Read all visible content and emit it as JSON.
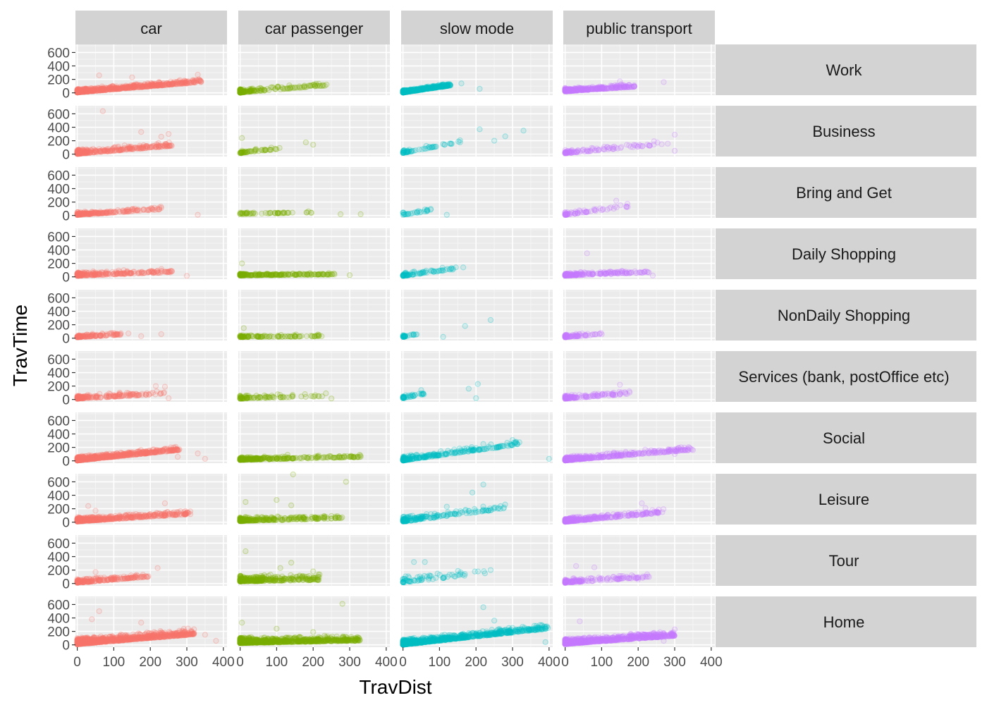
{
  "chart_data": {
    "type": "scatter",
    "facet": "grid",
    "xlabel": "TravDist",
    "ylabel": "TravTime",
    "xlim": [
      -5,
      410
    ],
    "ylim": [
      -35,
      720
    ],
    "xticks": [
      0,
      100,
      200,
      300,
      400
    ],
    "yticks": [
      0,
      200,
      400,
      600
    ],
    "grid": true,
    "panel_background": "#ebebeb",
    "strip_background": "#d3d3d3",
    "columns": [
      {
        "label": "car",
        "color": "#f8766d"
      },
      {
        "label": "car passenger",
        "color": "#7cae00"
      },
      {
        "label": "slow mode",
        "color": "#00bfc4"
      },
      {
        "label": "public transport",
        "color": "#c77cff"
      }
    ],
    "rows": [
      "Work",
      "Business",
      "Bring and Get",
      "Daily Shopping",
      "NonDaily Shopping",
      "Services (bank, postOffice etc)",
      "Social",
      "Leisure",
      "Tour",
      "Home"
    ],
    "panels": [
      [
        {
          "n": 700,
          "maxX": 340,
          "slope": 0.45,
          "base": 15,
          "noise": 28,
          "outliers": [
            [
              60,
              260
            ],
            [
              330,
              270
            ],
            [
              150,
              230
            ]
          ]
        },
        {
          "n": 180,
          "maxX": 240,
          "slope": 0.45,
          "base": 10,
          "noise": 28,
          "outliers": [],
          "compact": true
        },
        {
          "n": 520,
          "maxX": 130,
          "slope": 0.8,
          "base": 10,
          "noise": 18,
          "outliers": [
            [
              160,
              140
            ],
            [
              210,
              60
            ]
          ]
        },
        {
          "n": 360,
          "maxX": 190,
          "slope": 0.35,
          "base": 30,
          "noise": 25,
          "outliers": [
            [
              150,
              170
            ],
            [
              270,
              160
            ]
          ]
        }
      ],
      [
        {
          "n": 330,
          "maxX": 260,
          "slope": 0.45,
          "base": 15,
          "noise": 35,
          "outliers": [
            [
              70,
              640
            ],
            [
              250,
              300
            ],
            [
              175,
              330
            ],
            [
              230,
              260
            ]
          ]
        },
        {
          "n": 55,
          "maxX": 110,
          "slope": 0.6,
          "base": 20,
          "noise": 20,
          "outliers": [
            [
              5,
              240
            ],
            [
              180,
              175
            ],
            [
              200,
              140
            ]
          ]
        },
        {
          "n": 60,
          "maxX": 160,
          "slope": 1.0,
          "base": 25,
          "noise": 25,
          "outliers": [
            [
              210,
              370
            ],
            [
              330,
              350
            ],
            [
              280,
              265
            ],
            [
              250,
              200
            ]
          ]
        },
        {
          "n": 110,
          "maxX": 290,
          "slope": 0.5,
          "base": 20,
          "noise": 30,
          "outliers": [
            [
              300,
              290
            ],
            [
              300,
              50
            ]
          ]
        }
      ],
      [
        {
          "n": 200,
          "maxX": 230,
          "slope": 0.35,
          "base": 15,
          "noise": 22,
          "outliers": [
            [
              330,
              10
            ],
            [
              225,
              120
            ]
          ]
        },
        {
          "n": 55,
          "maxX": 200,
          "slope": 0.1,
          "base": 25,
          "noise": 12,
          "outliers": [
            [
              330,
              20
            ],
            [
              275,
              20
            ]
          ]
        },
        {
          "n": 30,
          "maxX": 80,
          "slope": 0.8,
          "base": 15,
          "noise": 20,
          "outliers": [
            [
              120,
              10
            ]
          ]
        },
        {
          "n": 70,
          "maxX": 180,
          "slope": 0.7,
          "base": 15,
          "noise": 25,
          "outliers": [
            [
              140,
              220
            ]
          ]
        }
      ],
      [
        {
          "n": 260,
          "maxX": 260,
          "slope": 0.2,
          "base": 25,
          "noise": 28,
          "outliers": [
            [
              300,
              15
            ]
          ]
        },
        {
          "n": 220,
          "maxX": 260,
          "slope": 0.05,
          "base": 25,
          "noise": 15,
          "outliers": [
            [
              5,
              200
            ],
            [
              300,
              25
            ]
          ]
        },
        {
          "n": 80,
          "maxX": 150,
          "slope": 0.7,
          "base": 20,
          "noise": 25,
          "outliers": [
            [
              165,
              140
            ]
          ]
        },
        {
          "n": 200,
          "maxX": 230,
          "slope": 0.2,
          "base": 25,
          "noise": 25,
          "outliers": [
            [
              60,
              350
            ],
            [
              240,
              20
            ]
          ]
        }
      ],
      [
        {
          "n": 130,
          "maxX": 120,
          "slope": 0.3,
          "base": 20,
          "noise": 20,
          "outliers": [
            [
              140,
              70
            ],
            [
              175,
              30
            ],
            [
              230,
              60
            ]
          ]
        },
        {
          "n": 110,
          "maxX": 230,
          "slope": 0.05,
          "base": 20,
          "noise": 15,
          "outliers": [
            [
              10,
              150
            ]
          ]
        },
        {
          "n": 30,
          "maxX": 40,
          "slope": 1.0,
          "base": 20,
          "noise": 15,
          "outliers": [
            [
              170,
              180
            ],
            [
              240,
              270
            ],
            [
              110,
              20
            ]
          ]
        },
        {
          "n": 90,
          "maxX": 110,
          "slope": 0.4,
          "base": 20,
          "noise": 20,
          "outliers": []
        }
      ],
      [
        {
          "n": 200,
          "maxX": 240,
          "slope": 0.3,
          "base": 20,
          "noise": 28,
          "outliers": [
            [
              215,
              200
            ],
            [
              240,
              190
            ],
            [
              250,
              20
            ]
          ]
        },
        {
          "n": 90,
          "maxX": 240,
          "slope": 0.15,
          "base": 20,
          "noise": 25,
          "outliers": [
            [
              250,
              15
            ]
          ]
        },
        {
          "n": 40,
          "maxX": 60,
          "slope": 1.0,
          "base": 25,
          "noise": 20,
          "outliers": [
            [
              205,
              230
            ],
            [
              180,
              160
            ],
            [
              200,
              20
            ],
            [
              50,
              140
            ]
          ]
        },
        {
          "n": 130,
          "maxX": 180,
          "slope": 0.4,
          "base": 20,
          "noise": 28,
          "outliers": [
            [
              150,
              220
            ],
            [
              130,
              90
            ]
          ]
        }
      ],
      [
        {
          "n": 650,
          "maxX": 280,
          "slope": 0.55,
          "base": 15,
          "noise": 30,
          "outliers": [
            [
              330,
              110
            ],
            [
              350,
              30
            ],
            [
              275,
              60
            ]
          ]
        },
        {
          "n": 280,
          "maxX": 330,
          "slope": 0.12,
          "base": 20,
          "noise": 20,
          "outliers": [
            [
              330,
              60
            ],
            [
              130,
              90
            ]
          ]
        },
        {
          "n": 260,
          "maxX": 320,
          "slope": 0.75,
          "base": 15,
          "noise": 35,
          "outliers": [
            [
              400,
              30
            ],
            [
              300,
              310
            ],
            [
              220,
              250
            ]
          ]
        },
        {
          "n": 420,
          "maxX": 350,
          "slope": 0.45,
          "base": 15,
          "noise": 30,
          "outliers": [
            [
              300,
              100
            ],
            [
              350,
              160
            ]
          ]
        }
      ],
      [
        {
          "n": 520,
          "maxX": 310,
          "slope": 0.35,
          "base": 20,
          "noise": 30,
          "outliers": [
            [
              30,
              240
            ],
            [
              240,
              280
            ],
            [
              50,
              170
            ]
          ]
        },
        {
          "n": 260,
          "maxX": 280,
          "slope": 0.15,
          "base": 25,
          "noise": 30,
          "outliers": [
            [
              145,
              710
            ],
            [
              290,
              600
            ],
            [
              100,
              330
            ],
            [
              140,
              250
            ],
            [
              15,
              300
            ]
          ]
        },
        {
          "n": 180,
          "maxX": 280,
          "slope": 0.7,
          "base": 20,
          "noise": 40,
          "outliers": [
            [
              220,
              560
            ],
            [
              190,
              440
            ],
            [
              120,
              230
            ],
            [
              260,
              200
            ]
          ]
        },
        {
          "n": 340,
          "maxX": 270,
          "slope": 0.5,
          "base": 15,
          "noise": 30,
          "outliers": [
            [
              210,
              280
            ],
            [
              220,
              210
            ]
          ]
        }
      ],
      [
        {
          "n": 220,
          "maxX": 200,
          "slope": 0.45,
          "base": 20,
          "noise": 30,
          "outliers": [
            [
              220,
              230
            ],
            [
              50,
              170
            ]
          ]
        },
        {
          "n": 320,
          "maxX": 220,
          "slope": 0.1,
          "base": 45,
          "noise": 45,
          "outliers": [
            [
              15,
              480
            ],
            [
              140,
              310
            ],
            [
              110,
              230
            ],
            [
              200,
              180
            ]
          ]
        },
        {
          "n": 70,
          "maxX": 240,
          "slope": 0.6,
          "base": 30,
          "noise": 45,
          "outliers": [
            [
              30,
              320
            ],
            [
              60,
              320
            ],
            [
              240,
              200
            ]
          ]
        },
        {
          "n": 160,
          "maxX": 230,
          "slope": 0.35,
          "base": 20,
          "noise": 30,
          "outliers": [
            [
              30,
              260
            ],
            [
              80,
              240
            ],
            [
              200,
              60
            ]
          ]
        }
      ],
      [
        {
          "n": 1100,
          "maxX": 320,
          "slope": 0.45,
          "base": 25,
          "noise": 45,
          "outliers": [
            [
              60,
              500
            ],
            [
              40,
              380
            ],
            [
              175,
              330
            ],
            [
              350,
              150
            ],
            [
              380,
              60
            ]
          ]
        },
        {
          "n": 850,
          "maxX": 330,
          "slope": 0.1,
          "base": 40,
          "noise": 40,
          "outliers": [
            [
              280,
              610
            ],
            [
              5,
              330
            ],
            [
              100,
              240
            ],
            [
              200,
              190
            ]
          ]
        },
        {
          "n": 850,
          "maxX": 400,
          "slope": 0.6,
          "base": 15,
          "noise": 40,
          "outliers": [
            [
              220,
              560
            ],
            [
              250,
              360
            ],
            [
              290,
              250
            ],
            [
              390,
              40
            ]
          ]
        },
        {
          "n": 950,
          "maxX": 300,
          "slope": 0.4,
          "base": 25,
          "noise": 38,
          "outliers": [
            [
              40,
              350
            ],
            [
              300,
              230
            ],
            [
              270,
              60
            ]
          ]
        }
      ]
    ]
  }
}
